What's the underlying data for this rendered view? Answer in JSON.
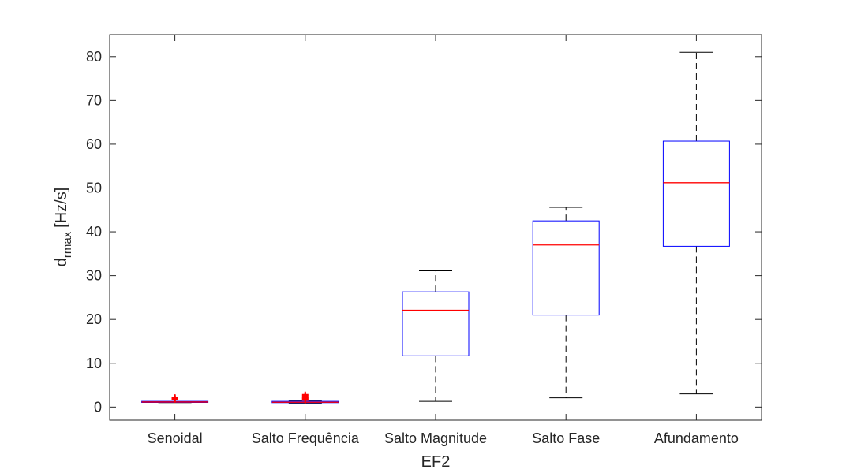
{
  "chart_data": {
    "type": "box",
    "xlabel": "EF2",
    "ylabel": {
      "base": "d",
      "subscript": "rmax",
      "unit": "[Hz/s]"
    },
    "ylim": [
      -3,
      85
    ],
    "yticks": [
      0,
      10,
      20,
      30,
      40,
      50,
      60,
      70,
      80
    ],
    "categories": [
      "Senoidal",
      "Salto Frequência",
      "Salto Magnitude",
      "Salto Fase",
      "Afundamento"
    ],
    "boxes": [
      {
        "min": 1.0,
        "q1": 1.05,
        "median": 1.15,
        "q3": 1.3,
        "max": 1.6,
        "outliers": [
          1.7,
          1.8,
          1.9,
          2.0,
          2.1,
          2.2
        ]
      },
      {
        "min": 0.9,
        "q1": 1.0,
        "median": 1.1,
        "q3": 1.3,
        "max": 1.5,
        "outliers": [
          1.6,
          1.8,
          2.0,
          2.2,
          2.5,
          2.8
        ]
      },
      {
        "min": 1.3,
        "q1": 11.7,
        "median": 22.1,
        "q3": 26.3,
        "max": 31.1,
        "outliers": []
      },
      {
        "min": 2.1,
        "q1": 21.0,
        "median": 37.0,
        "q3": 42.5,
        "max": 45.6,
        "outliers": []
      },
      {
        "min": 3.0,
        "q1": 36.7,
        "median": 51.2,
        "q3": 60.7,
        "max": 81.0,
        "outliers": []
      }
    ],
    "colors": {
      "box": "#0000ff",
      "median": "#ff0000",
      "whisker": "#000000",
      "outlier": "#ff0000",
      "axis": "#262626"
    },
    "grid": false,
    "legend": "none"
  }
}
